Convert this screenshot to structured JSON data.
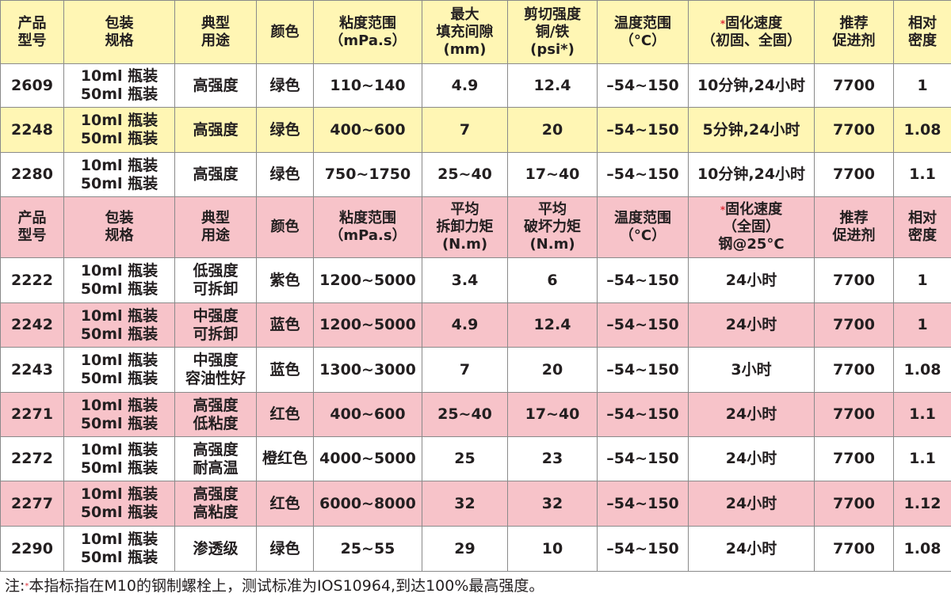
{
  "colors": {
    "header_yellow": "#fff6b4",
    "header_pink": "#f7c3c9",
    "text": "#231f20"
  },
  "table1": {
    "headers": [
      "产品\n型号",
      "包装\n规格",
      "典型\n用途",
      "颜色",
      "粘度范围\n（mPa.s）",
      "最大\n填充间隙\n(mm)",
      "剪切强度\n铜/铁\n(psi*)",
      "温度范围\n（°C）",
      "固化速度\n（初固、全固）",
      "推荐\n促进剂",
      "相对\n密度"
    ],
    "rows": [
      {
        "style": "w",
        "cells": [
          "2609",
          "10ml 瓶装\n50ml 瓶装",
          "高强度",
          "绿色",
          "110~140",
          "4.9",
          "12.4",
          "–54~150",
          "10分钟,24小时",
          "7700",
          "1"
        ]
      },
      {
        "style": "y",
        "cells": [
          "2248",
          "10ml 瓶装\n50ml 瓶装",
          "高强度",
          "绿色",
          "400~600",
          "7",
          "20",
          "–54~150",
          "5分钟,24小时",
          "7700",
          "1.08"
        ]
      },
      {
        "style": "w",
        "cells": [
          "2280",
          "10ml 瓶装\n50ml 瓶装",
          "高强度",
          "绿色",
          "750~1750",
          "25~40",
          "17~40",
          "–54~150",
          "10分钟,24小时",
          "7700",
          "1.1"
        ]
      }
    ]
  },
  "table2": {
    "headers": [
      "产品\n型号",
      "包装\n规格",
      "典型\n用途",
      "颜色",
      "粘度范围\n（mPa.s）",
      "平均\n拆卸力矩\n(N.m)",
      "平均\n破坏力矩\n(N.m)",
      "温度范围\n（°C）",
      "固化速度\n（全固）\n钢@25°C",
      "推荐\n促进剂",
      "相对\n密度"
    ],
    "rows": [
      {
        "style": "w",
        "cells": [
          "2222",
          "10ml 瓶装\n50ml 瓶装",
          "低强度\n可拆卸",
          "紫色",
          "1200~5000",
          "3.4",
          "6",
          "–54~150",
          "24小时",
          "7700",
          "1"
        ]
      },
      {
        "style": "p",
        "cells": [
          "2242",
          "10ml 瓶装\n50ml 瓶装",
          "中强度\n可拆卸",
          "蓝色",
          "1200~5000",
          "4.9",
          "12.4",
          "–54~150",
          "24小时",
          "7700",
          "1"
        ]
      },
      {
        "style": "w",
        "cells": [
          "2243",
          "10ml 瓶装\n50ml 瓶装",
          "中强度\n容油性好",
          "蓝色",
          "1300~3000",
          "7",
          "20",
          "–54~150",
          "3小时",
          "7700",
          "1.08"
        ]
      },
      {
        "style": "p",
        "cells": [
          "2271",
          "10ml 瓶装\n50ml 瓶装",
          "高强度\n低粘度",
          "红色",
          "400~600",
          "25~40",
          "17~40",
          "–54~150",
          "24小时",
          "7700",
          "1.1"
        ]
      },
      {
        "style": "w",
        "cells": [
          "2272",
          "10ml 瓶装\n50ml 瓶装",
          "高强度\n耐高温",
          "橙红色",
          "4000~5000",
          "25",
          "23",
          "–54~150",
          "24小时",
          "7700",
          "1.1"
        ]
      },
      {
        "style": "p",
        "cells": [
          "2277",
          "10ml 瓶装\n50ml 瓶装",
          "高强度\n高粘度",
          "红色",
          "6000~8000",
          "32",
          "32",
          "–54~150",
          "24小时",
          "7700",
          "1.12"
        ]
      },
      {
        "style": "w",
        "cells": [
          "2290",
          "10ml 瓶装\n50ml 瓶装",
          "渗透级",
          "绿色",
          "25~55",
          "29",
          "10",
          "–54~150",
          "24小时",
          "7700",
          "1.08"
        ]
      }
    ]
  },
  "note": {
    "prefix": "注:",
    "marker": "*",
    "text": "本指标指在M10的钢制螺栓上，测试标准为IOS10964,到达100%最高强度。"
  }
}
